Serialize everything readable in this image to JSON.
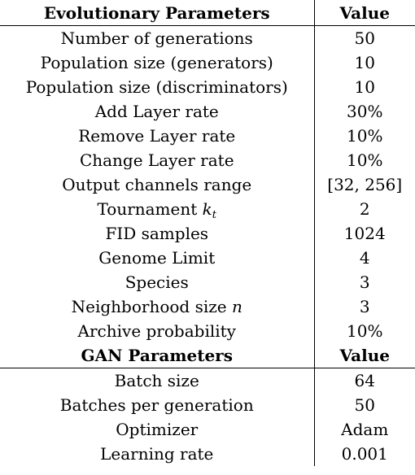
{
  "section_evo": {
    "header_param": "Evolutionary Parameters",
    "header_value": "Value",
    "rows": [
      {
        "label": "Number of generations",
        "value": "50"
      },
      {
        "label": "Population size (generators)",
        "value": "10"
      },
      {
        "label": "Population size (discriminators)",
        "value": "10"
      },
      {
        "label": "Add Layer rate",
        "value": "30%"
      },
      {
        "label": "Remove Layer rate",
        "value": "10%"
      },
      {
        "label": "Change Layer rate",
        "value": "10%"
      },
      {
        "label": "Output channels range",
        "value": "[32, 256]"
      },
      {
        "label": "Tournament",
        "math": "k",
        "math_sub": "t",
        "value": "2"
      },
      {
        "label": "FID samples",
        "value": "1024"
      },
      {
        "label": "Genome Limit",
        "value": "4"
      },
      {
        "label": "Species",
        "value": "3"
      },
      {
        "label": "Neighborhood size",
        "math": "n",
        "value": "3"
      },
      {
        "label": "Archive probability",
        "value": "10%"
      }
    ]
  },
  "section_gan": {
    "header_param": "GAN Parameters",
    "header_value": "Value",
    "rows": [
      {
        "label": "Batch size",
        "value": "64"
      },
      {
        "label": "Batches per generation",
        "value": "50"
      },
      {
        "label": "Optimizer",
        "value": "Adam"
      },
      {
        "label": "Learning rate",
        "value": "0.001"
      }
    ]
  }
}
